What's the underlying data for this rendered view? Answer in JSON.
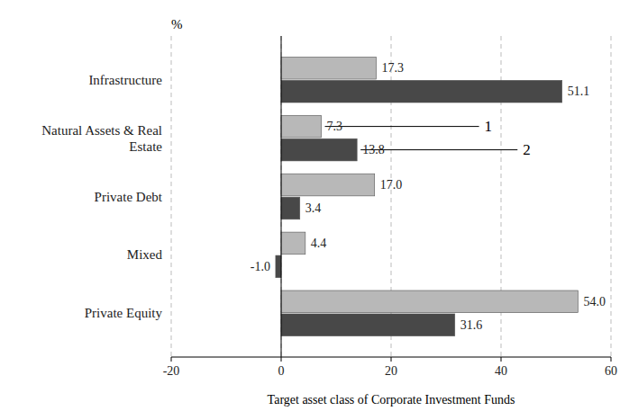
{
  "chart_data": {
    "type": "bar",
    "orientation": "horizontal",
    "categories": [
      "Private Equity",
      "Mixed",
      "Private Debt",
      "Natural Assets & Real\nEstate",
      "Infrastructure"
    ],
    "series": [
      {
        "color": "#b8b8b8",
        "values": [
          54.0,
          4.4,
          17.0,
          7.3,
          17.3
        ],
        "value_labels": [
          "54.0",
          "4.4",
          "17.0",
          "7.3",
          "17.3"
        ]
      },
      {
        "color": "#484848",
        "values": [
          31.6,
          -1.0,
          3.4,
          13.8,
          51.1
        ],
        "value_labels": [
          "31.6",
          "-1.0",
          "3.4",
          "13.8",
          "51.1"
        ]
      }
    ],
    "xlabel": "Target asset class of Corporate Investment Funds",
    "ylabel": "%",
    "xlim": [
      -20,
      60
    ],
    "xticks": [
      -20,
      0,
      20,
      40,
      60
    ],
    "grid": true,
    "data_labels": true,
    "annotations": [
      {
        "text": "1",
        "x": 36,
        "series": 0,
        "category_index": 3
      },
      {
        "text": "2",
        "x": 43,
        "series": 1,
        "category_index": 3
      }
    ]
  }
}
